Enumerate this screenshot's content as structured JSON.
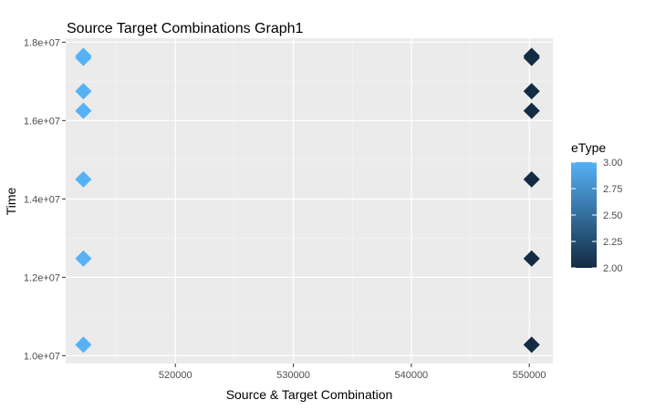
{
  "chart_data": {
    "type": "scatter",
    "title": "Source Target Combinations Graph1",
    "xlabel": "Source & Target Combination",
    "ylabel": "Time",
    "xlim": [
      510700,
      552000
    ],
    "ylim": [
      9800000,
      18100000
    ],
    "x_ticks": [
      520000,
      530000,
      540000,
      550000
    ],
    "x_tick_labels": [
      "520000",
      "530000",
      "540000",
      "550000"
    ],
    "y_ticks": [
      10000000,
      12000000,
      14000000,
      16000000,
      18000000
    ],
    "y_tick_labels": [
      "1.0e+07",
      "1.2e+07",
      "1.4e+07",
      "1.6e+07",
      "1.8e+07"
    ],
    "grid": true,
    "marker": "diamond",
    "color_scale": {
      "name": "eType",
      "low": 2.0,
      "high": 3.0,
      "low_color": "#132B43",
      "high_color": "#56B1F7",
      "ticks": [
        2.0,
        2.25,
        2.5,
        2.75,
        3.0
      ],
      "tick_labels": [
        "2.00",
        "2.25",
        "2.50",
        "2.75",
        "3.00"
      ]
    },
    "legend_position": "right",
    "points": [
      {
        "x": 512200,
        "y": 17650000,
        "eType": 3
      },
      {
        "x": 512200,
        "y": 17600000,
        "eType": 3
      },
      {
        "x": 512200,
        "y": 16750000,
        "eType": 3
      },
      {
        "x": 512200,
        "y": 16250000,
        "eType": 3
      },
      {
        "x": 512200,
        "y": 14500000,
        "eType": 3
      },
      {
        "x": 512200,
        "y": 12480000,
        "eType": 3
      },
      {
        "x": 512200,
        "y": 10280000,
        "eType": 3
      },
      {
        "x": 550200,
        "y": 17650000,
        "eType": 2
      },
      {
        "x": 550200,
        "y": 17600000,
        "eType": 2
      },
      {
        "x": 550200,
        "y": 16750000,
        "eType": 2
      },
      {
        "x": 550200,
        "y": 16250000,
        "eType": 2
      },
      {
        "x": 550200,
        "y": 14500000,
        "eType": 2
      },
      {
        "x": 550200,
        "y": 12480000,
        "eType": 2
      },
      {
        "x": 550200,
        "y": 10280000,
        "eType": 2
      }
    ]
  }
}
